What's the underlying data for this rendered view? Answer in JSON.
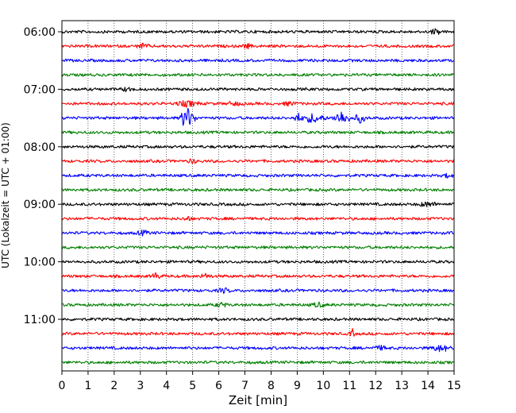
{
  "chart_data": {
    "type": "line",
    "title": "",
    "xlabel": "Zeit  [min]",
    "ylabel": "UTC (Lokalzeit = UTC + 01:00)",
    "xlim": [
      0,
      15
    ],
    "x_ticks": [
      0,
      1,
      2,
      3,
      4,
      5,
      6,
      7,
      8,
      9,
      10,
      11,
      12,
      13,
      14,
      15
    ],
    "x_tick_labels": [
      "0",
      "1",
      "2",
      "3",
      "4",
      "5",
      "6",
      "7",
      "8",
      "9",
      "10",
      "11",
      "12",
      "13",
      "14",
      "15"
    ],
    "y_tick_labels": [
      "06:00",
      "07:00",
      "08:00",
      "09:00",
      "10:00",
      "11:00"
    ],
    "y_tick_rows": [
      0,
      4,
      8,
      12,
      16,
      20
    ],
    "grid": {
      "x": true,
      "y": false,
      "style": "dotted"
    },
    "trace_interval_minutes": 15,
    "trace_colors": [
      "#000000",
      "#ff0000",
      "#0000ff",
      "#008000"
    ],
    "traces": [
      {
        "start": "06:00",
        "color": "#000000"
      },
      {
        "start": "06:15",
        "color": "#ff0000"
      },
      {
        "start": "06:30",
        "color": "#0000ff"
      },
      {
        "start": "06:45",
        "color": "#008000"
      },
      {
        "start": "07:00",
        "color": "#000000"
      },
      {
        "start": "07:15",
        "color": "#ff0000"
      },
      {
        "start": "07:30",
        "color": "#0000ff"
      },
      {
        "start": "07:45",
        "color": "#008000"
      },
      {
        "start": "08:00",
        "color": "#000000"
      },
      {
        "start": "08:15",
        "color": "#ff0000"
      },
      {
        "start": "08:30",
        "color": "#0000ff"
      },
      {
        "start": "08:45",
        "color": "#008000"
      },
      {
        "start": "09:00",
        "color": "#000000"
      },
      {
        "start": "09:15",
        "color": "#ff0000"
      },
      {
        "start": "09:30",
        "color": "#0000ff"
      },
      {
        "start": "09:45",
        "color": "#008000"
      },
      {
        "start": "10:00",
        "color": "#000000"
      },
      {
        "start": "10:15",
        "color": "#ff0000"
      },
      {
        "start": "10:30",
        "color": "#0000ff"
      },
      {
        "start": "10:45",
        "color": "#008000"
      },
      {
        "start": "11:00",
        "color": "#000000"
      },
      {
        "start": "11:15",
        "color": "#ff0000"
      },
      {
        "start": "11:30",
        "color": "#0000ff"
      },
      {
        "start": "11:45",
        "color": "#008000"
      }
    ]
  }
}
